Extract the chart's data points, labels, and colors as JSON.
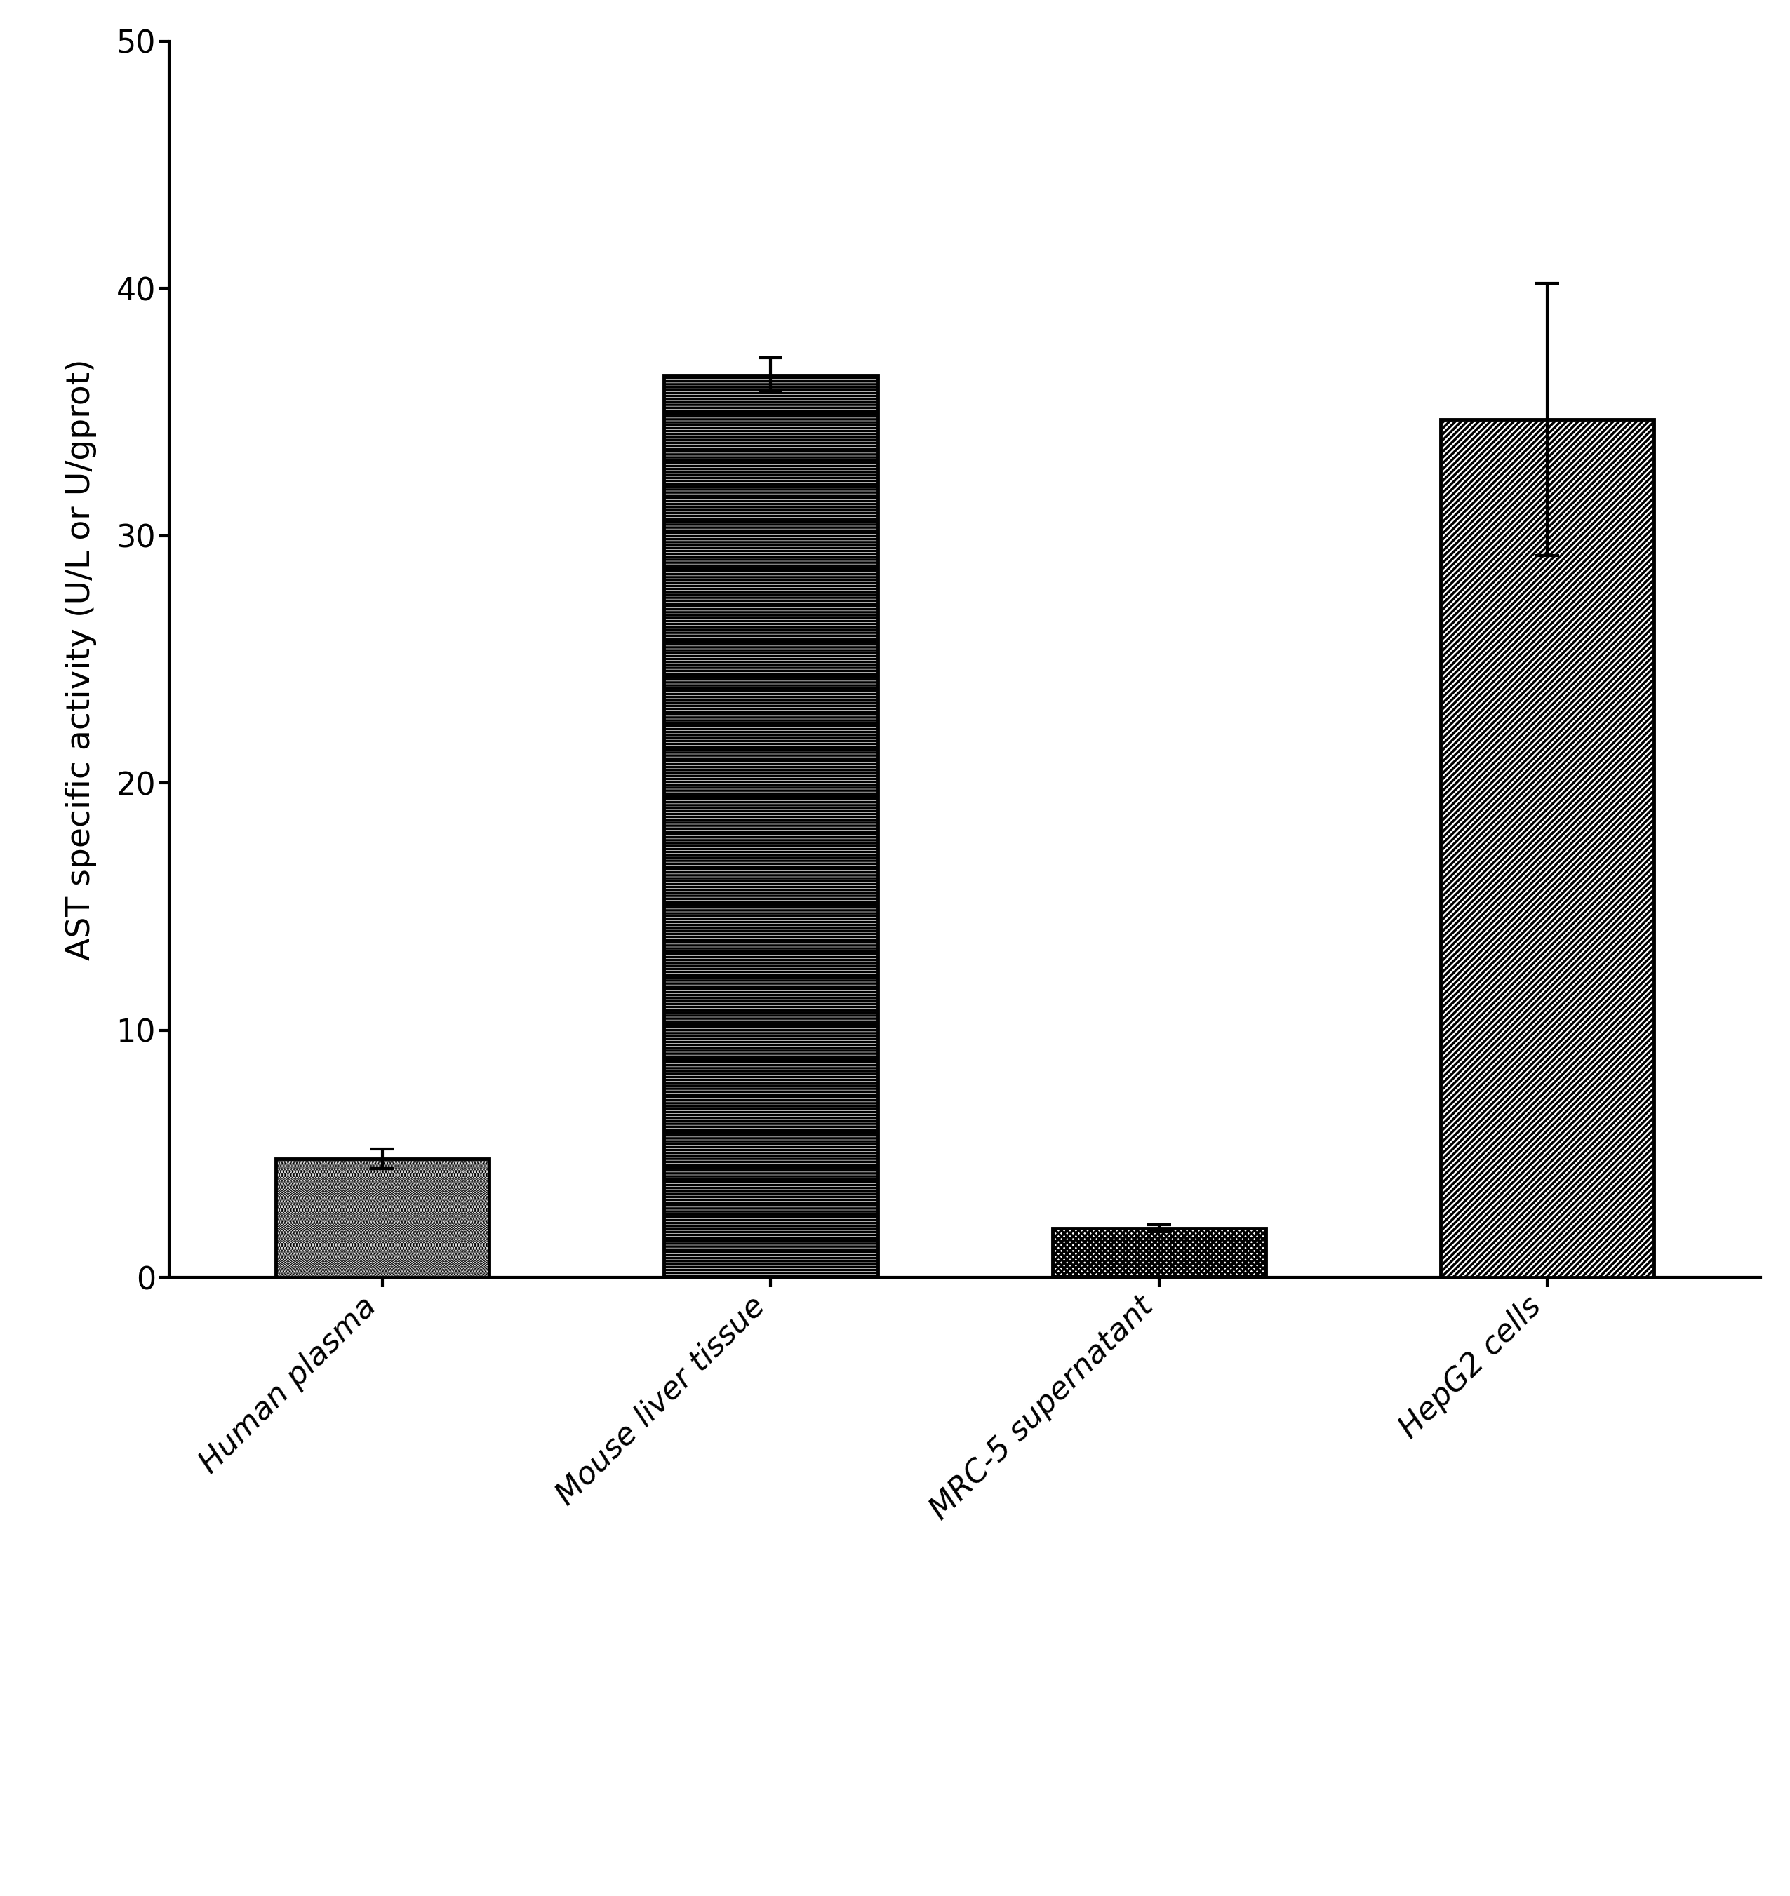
{
  "categories": [
    "Human plasma",
    "Mouse liver tissue",
    "MRC-5 supernatant",
    "HepG2 cells"
  ],
  "values": [
    4.8,
    36.5,
    2.0,
    34.7
  ],
  "errors": [
    0.4,
    0.7,
    0.15,
    5.5
  ],
  "ylabel": "AST specific activity (U/L or U/gprot)",
  "ylim": [
    0,
    50
  ],
  "yticks": [
    0,
    10,
    20,
    30,
    40,
    50
  ],
  "bar_width": 0.55,
  "bar_edge_color": "#000000",
  "bar_edge_linewidth": 3.5,
  "background_color": "#ffffff",
  "ylabel_fontsize": 34,
  "tick_fontsize": 32,
  "xlabel_fontsize": 32,
  "error_capsize": 12,
  "error_linewidth": 3.0,
  "hatch_patterns": [
    "....",
    "====",
    "xxxx",
    "////"
  ],
  "bar_facecolor": "#ffffff",
  "hatch_linewidth": 2.5
}
